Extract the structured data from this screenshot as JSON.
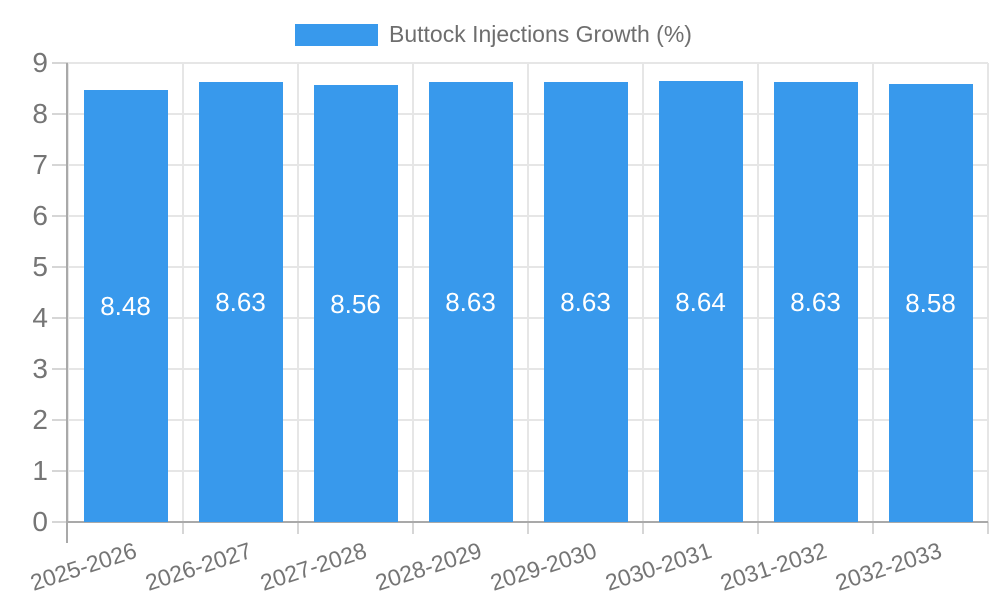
{
  "chart_data": {
    "type": "bar",
    "title": "Buttock Injections Growth (%)",
    "legend_position": "top-center",
    "categories": [
      "2025-2026",
      "2026-2027",
      "2027-2028",
      "2028-2029",
      "2029-2030",
      "2030-2031",
      "2031-2032",
      "2032-2033"
    ],
    "values": [
      8.48,
      8.63,
      8.56,
      8.63,
      8.63,
      8.64,
      8.63,
      8.58
    ],
    "value_labels": [
      "8.48",
      "8.63",
      "8.56",
      "8.63",
      "8.63",
      "8.64",
      "8.63",
      "8.58"
    ],
    "xlabel": "",
    "ylabel": "",
    "ylim": [
      0,
      9
    ],
    "yticks": [
      0,
      1,
      2,
      3,
      4,
      5,
      6,
      7,
      8,
      9
    ],
    "grid": true,
    "x_tick_rotation_deg": -18,
    "colors": {
      "bar": "#3899ec",
      "grid": "#e6e6e6",
      "axis": "#a9a9a9",
      "tick": "#d6d6d6",
      "tick_text": "#757575",
      "legend_text": "#6e6e6e",
      "bar_label_text": "#ffffff",
      "background": "#ffffff"
    }
  }
}
